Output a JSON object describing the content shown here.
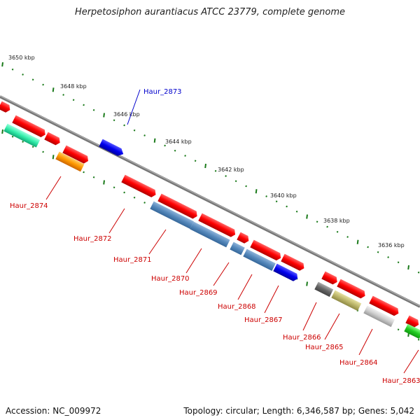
{
  "title": "Herpetosiphon aurantiacus ATCC 23779, complete genome",
  "footer": {
    "accession_text": "Accession: NC_009972",
    "topology_text": "Topology: circular; Length: 6,346,587 bp; Genes: 5,042"
  },
  "colors": {
    "backbone": "#888888",
    "ticks": "#1a7a1a",
    "label_red": "#cc0000",
    "label_blue": "#0000cc"
  },
  "kbp_labels": [
    "3650 kbp",
    "3648 kbp",
    "3646 kbp",
    "3644 kbp",
    "3642 kbp",
    "3640 kbp",
    "3638 kbp",
    "3636 kbp"
  ],
  "gene_labels": [
    {
      "name": "Haur_2873",
      "color": "blue"
    },
    {
      "name": "Haur_2874",
      "color": "red"
    },
    {
      "name": "Haur_2872",
      "color": "red"
    },
    {
      "name": "Haur_2871",
      "color": "red"
    },
    {
      "name": "Haur_2870",
      "color": "red"
    },
    {
      "name": "Haur_2869",
      "color": "red"
    },
    {
      "name": "Haur_2868",
      "color": "red"
    },
    {
      "name": "Haur_2867",
      "color": "red"
    },
    {
      "name": "Haur_2866",
      "color": "red"
    },
    {
      "name": "Haur_2865",
      "color": "red"
    },
    {
      "name": "Haur_2864",
      "color": "red"
    },
    {
      "name": "Haur_2863",
      "color": "red"
    }
  ]
}
